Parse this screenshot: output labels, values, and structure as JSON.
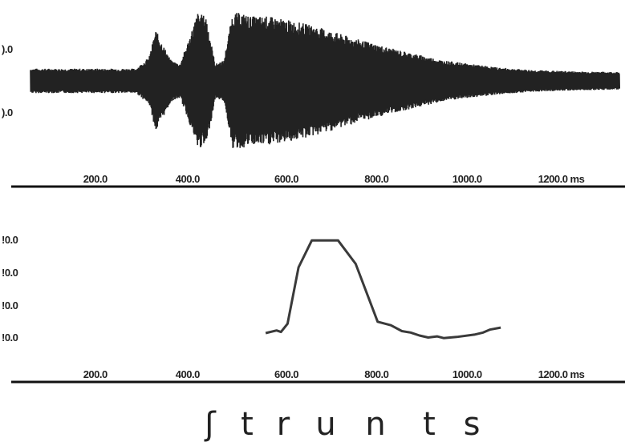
{
  "chart_data": [
    {
      "type": "line",
      "panel": "waveform",
      "x_unit": "ms",
      "xlim": [
        60,
        1400
      ],
      "ylim": [
        -1,
        1
      ],
      "x_ticks": [
        "200.0",
        "400.0",
        "600.0",
        "800.0",
        "1000.0",
        "1200.0 ms"
      ],
      "y_ticks": [
        ").0",
        ").0"
      ],
      "envelope": {
        "x": [
          60,
          300,
          330,
          345,
          360,
          380,
          400,
          420,
          440,
          460,
          480,
          500,
          520,
          540,
          560,
          600,
          640,
          680,
          720,
          760,
          800,
          840,
          880,
          920,
          960,
          1000,
          1060,
          1120,
          1200,
          1300,
          1400
        ],
        "amp": [
          0.18,
          0.18,
          0.35,
          0.75,
          0.55,
          0.3,
          0.25,
          0.6,
          1.0,
          0.95,
          0.25,
          0.3,
          1.0,
          1.0,
          0.95,
          0.95,
          0.9,
          0.85,
          0.78,
          0.7,
          0.62,
          0.55,
          0.48,
          0.42,
          0.36,
          0.3,
          0.25,
          0.2,
          0.16,
          0.14,
          0.13
        ]
      }
    },
    {
      "type": "line",
      "panel": "pitch",
      "x_unit": "ms",
      "xlim": [
        60,
        1400
      ],
      "ylim": [
        0,
        4.6
      ],
      "x_ticks": [
        "200.0",
        "400.0",
        "600.0",
        "800.0",
        "1000.0",
        "1200.0 ms"
      ],
      "y_ticks": [
        "!0.0",
        "!0.0",
        "!0.0",
        "!0.0"
      ],
      "series": [
        {
          "x": [
            595,
            620,
            630,
            645,
            670,
            700,
            720,
            760,
            800,
            850,
            880,
            905,
            925,
            945,
            965,
            985,
            1000,
            1030,
            1070,
            1090,
            1105,
            1130
          ],
          "y": [
            0.93,
            1.02,
            0.97,
            1.25,
            3.18,
            4.1,
            4.1,
            4.1,
            3.3,
            1.32,
            1.2,
            1.0,
            0.95,
            0.85,
            0.78,
            0.82,
            0.76,
            0.8,
            0.88,
            0.95,
            1.05,
            1.12
          ]
        }
      ]
    }
  ],
  "transcription": [
    "ʃ",
    "t",
    "r",
    "u",
    "n",
    "t",
    "s"
  ]
}
